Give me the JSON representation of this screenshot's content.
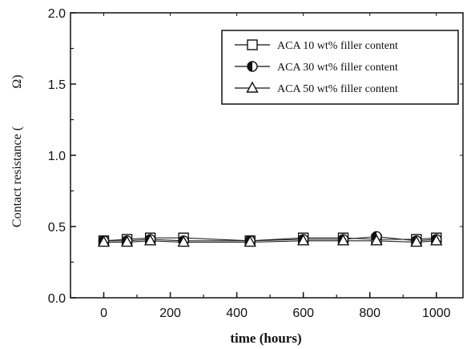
{
  "chart_data": {
    "type": "line",
    "xlabel": "time (hours)",
    "ylabel": "Contact resistance (Ω)",
    "ylabel_main": "Contact resistance (",
    "ylabel_unit": "Ω)",
    "xlim": [
      -100,
      1080
    ],
    "ylim": [
      0.0,
      2.0
    ],
    "xticks": [
      0,
      200,
      400,
      600,
      800,
      1000
    ],
    "yticks": [
      0.0,
      0.5,
      1.0,
      1.5,
      2.0
    ],
    "xtick_labels": [
      "0",
      "200",
      "400",
      "600",
      "800",
      "1000"
    ],
    "ytick_labels": [
      "0.0",
      "0.5",
      "1.0",
      "1.5",
      "2.0"
    ],
    "legend_position": "top-right",
    "grid": false,
    "series": [
      {
        "name": "ACA 10 wt% filler content",
        "marker": "square-open",
        "x": [
          0,
          70,
          140,
          240,
          440,
          600,
          720,
          820,
          940,
          1000
        ],
        "y": [
          0.4,
          0.41,
          0.42,
          0.42,
          0.4,
          0.42,
          0.42,
          0.41,
          0.41,
          0.42
        ]
      },
      {
        "name": "ACA 30 wt% filler content",
        "marker": "circle-half-filled",
        "x": [
          0,
          70,
          140,
          240,
          440,
          600,
          720,
          820,
          940,
          1000
        ],
        "y": [
          0.4,
          0.4,
          0.41,
          0.4,
          0.4,
          0.41,
          0.41,
          0.43,
          0.4,
          0.41
        ]
      },
      {
        "name": "ACA 50 wt% filler content",
        "marker": "triangle-open",
        "x": [
          0,
          70,
          140,
          240,
          440,
          600,
          720,
          820,
          940,
          1000
        ],
        "y": [
          0.39,
          0.39,
          0.4,
          0.39,
          0.39,
          0.4,
          0.4,
          0.4,
          0.39,
          0.4
        ]
      }
    ]
  }
}
